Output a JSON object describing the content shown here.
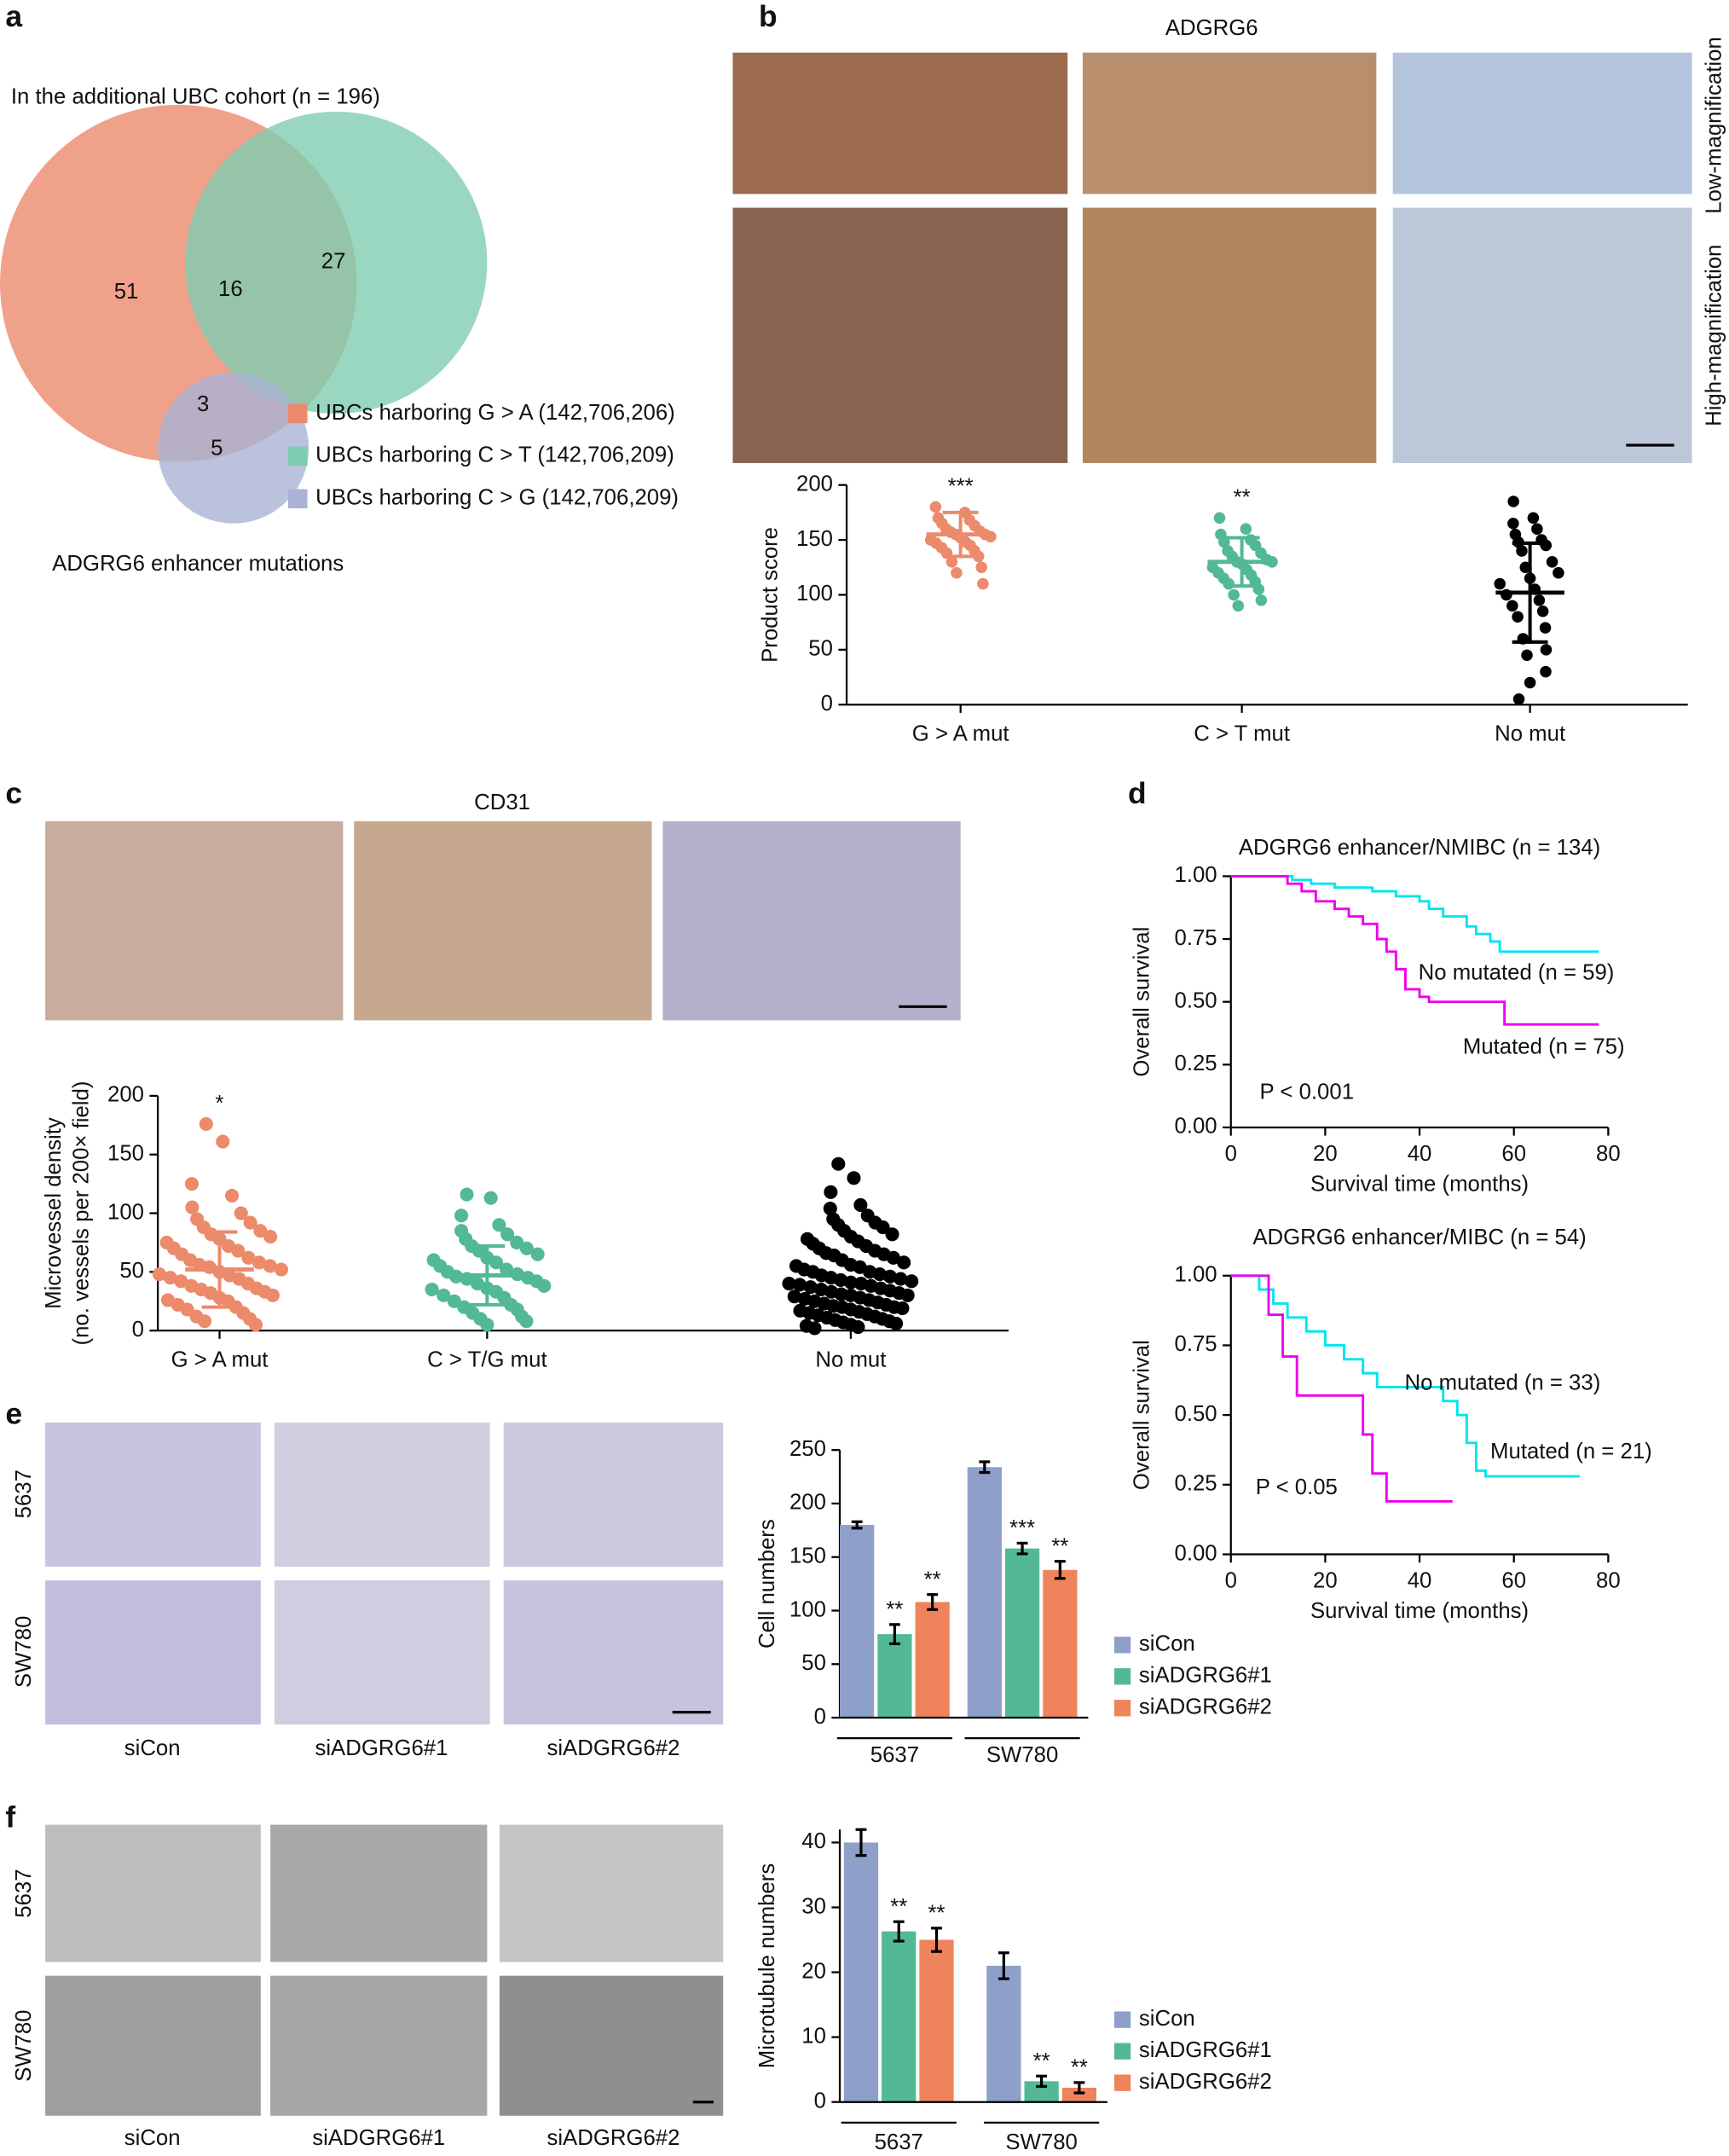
{
  "figure": {
    "panel_labels": [
      "a",
      "b",
      "c",
      "d",
      "e",
      "f"
    ],
    "b_images": {
      "title": "ADGRG6",
      "rows": [
        "Low-magnification",
        "High-magnification"
      ]
    },
    "c_images": {
      "title": "CD31"
    },
    "e_images": {
      "rows": [
        "5637",
        "SW780"
      ],
      "columns": [
        "siCon",
        "siADGRG6#1",
        "siADGRG6#2"
      ]
    },
    "f_images": {
      "rows": [
        "5637",
        "SW780"
      ],
      "columns": [
        "siCon",
        "siADGRG6#1",
        "siADGRG6#2"
      ]
    }
  },
  "chart_data": [
    {
      "type": "venn",
      "title": "In the additional UBC cohort (n = 196)",
      "footnote": "ADGRG6 enhancer mutations",
      "series": [
        {
          "name": "UBCs harboring G > A (142,706,206)",
          "color": "#ec8a6c"
        },
        {
          "name": "UBCs harboring C > T (142,706,209)",
          "color": "#7fcdb0"
        },
        {
          "name": "UBCs harboring C > G (142,706,209)",
          "color": "#a9b3d6"
        }
      ],
      "regions": [
        {
          "sets": [
            0
          ],
          "value": 51
        },
        {
          "sets": [
            0,
            1
          ],
          "value": 16
        },
        {
          "sets": [
            1
          ],
          "value": 27
        },
        {
          "sets": [
            0,
            2
          ],
          "value": 3
        },
        {
          "sets": [
            2
          ],
          "value": 5
        }
      ]
    },
    {
      "type": "strip",
      "ylabel": "Product score",
      "categories": [
        "G > A mut",
        "C > T mut",
        "No mut"
      ],
      "colors": [
        "#ec8a6c",
        "#52b994",
        "#000000"
      ],
      "values": [
        [
          180,
          175,
          170,
          168,
          165,
          163,
          160,
          158,
          157,
          155,
          155,
          153,
          152,
          150,
          148,
          147,
          145,
          143,
          140,
          138,
          135,
          130,
          125,
          120,
          110
        ],
        [
          170,
          160,
          155,
          150,
          148,
          145,
          140,
          138,
          135,
          132,
          130,
          130,
          128,
          125,
          123,
          120,
          118,
          115,
          112,
          110,
          105,
          100,
          95,
          90
        ],
        [
          185,
          170,
          165,
          160,
          155,
          150,
          148,
          145,
          140,
          130,
          125,
          120,
          115,
          110,
          105,
          100,
          95,
          90,
          85,
          80,
          70,
          60,
          50,
          45,
          30,
          20,
          5
        ]
      ],
      "means": [
        155,
        130,
        102
      ],
      "sds": [
        20,
        22,
        45
      ],
      "annotations": [
        "***",
        "**",
        null
      ],
      "ylim": [
        0,
        200
      ],
      "yticks": [
        0,
        50,
        100,
        150,
        200
      ]
    },
    {
      "type": "strip",
      "ylabel": [
        "Microvessel density",
        "(no. vessels per 200× field)"
      ],
      "categories": [
        "G > A mut",
        "C > T/G mut",
        "No mut"
      ],
      "colors": [
        "#ec8a6c",
        "#52b994",
        "#000000"
      ],
      "values": [
        [
          176,
          161,
          125,
          115,
          105,
          100,
          95,
          92,
          88,
          85,
          82,
          80,
          78,
          75,
          72,
          70,
          68,
          65,
          62,
          60,
          58,
          56,
          55,
          54,
          52,
          50,
          48,
          47,
          45,
          44,
          42,
          40,
          38,
          36,
          35,
          33,
          32,
          30,
          28,
          26,
          25,
          22,
          20,
          18,
          15,
          12,
          10,
          8,
          5
        ],
        [
          116,
          113,
          98,
          90,
          85,
          82,
          78,
          75,
          72,
          70,
          68,
          65,
          62,
          60,
          58,
          55,
          52,
          50,
          48,
          46,
          45,
          44,
          42,
          40,
          38,
          36,
          35,
          33,
          30,
          28,
          25,
          22,
          20,
          18,
          15,
          12,
          10,
          8,
          5
        ],
        [
          142,
          130,
          118,
          107,
          104,
          98,
          95,
          92,
          90,
          88,
          85,
          82,
          80,
          78,
          76,
          74,
          72,
          70,
          68,
          66,
          65,
          64,
          62,
          60,
          58,
          56,
          55,
          54,
          52,
          50,
          50,
          48,
          47,
          46,
          45,
          44,
          43,
          42,
          41,
          40,
          40,
          39,
          38,
          37,
          36,
          35,
          34,
          33,
          32,
          31,
          30,
          30,
          29,
          28,
          27,
          26,
          25,
          24,
          23,
          22,
          21,
          20,
          20,
          19,
          18,
          17,
          16,
          15,
          14,
          13,
          12,
          11,
          10,
          9,
          8,
          7,
          6,
          5,
          4,
          3,
          2
        ]
      ],
      "means": [
        52,
        47,
        null
      ],
      "sds": [
        32,
        25,
        null
      ],
      "annotations": [
        "*",
        null,
        null
      ],
      "ylim": [
        0,
        200
      ],
      "yticks": [
        0,
        50,
        100,
        150,
        200
      ]
    },
    {
      "type": "step",
      "title": "ADGRG6 enhancer/NMIBC (n = 134)",
      "xlabel": "Survival time (months)",
      "ylabel": "Overall survival",
      "annotation": "P < 0.001",
      "xlim": [
        0,
        80
      ],
      "xticks": [
        0,
        20,
        40,
        60,
        80
      ],
      "ylim": [
        0,
        1
      ],
      "yticks": [
        {
          "value": 0,
          "label": "0.00"
        },
        0.25,
        {
          "value": 0.5,
          "label": "0.50"
        },
        0.75,
        {
          "value": 1,
          "label": "1.00"
        }
      ],
      "series": [
        {
          "name": "No mutated (n = 59)",
          "color": "#00e5ee",
          "x": [
            0,
            13,
            13,
            17,
            17,
            22,
            22,
            30,
            30,
            35,
            35,
            40,
            40,
            42,
            42,
            45,
            45,
            50,
            50,
            52,
            52,
            55,
            55,
            57,
            57,
            78
          ],
          "values": [
            1,
            1,
            0.985,
            0.985,
            0.97,
            0.97,
            0.955,
            0.955,
            0.94,
            0.94,
            0.92,
            0.92,
            0.9,
            0.9,
            0.87,
            0.87,
            0.84,
            0.84,
            0.8,
            0.8,
            0.77,
            0.77,
            0.74,
            0.74,
            0.7,
            0.7
          ]
        },
        {
          "name": "Mutated (n = 75)",
          "color": "#ee00ee",
          "x": [
            0,
            12,
            12,
            15,
            15,
            18,
            18,
            22,
            22,
            25,
            25,
            28,
            28,
            31,
            31,
            33,
            33,
            35,
            35,
            37,
            37,
            40,
            40,
            42,
            42,
            58,
            58,
            78
          ],
          "values": [
            1,
            1,
            0.97,
            0.97,
            0.94,
            0.94,
            0.9,
            0.9,
            0.87,
            0.87,
            0.84,
            0.84,
            0.81,
            0.81,
            0.75,
            0.75,
            0.7,
            0.7,
            0.63,
            0.63,
            0.55,
            0.55,
            0.52,
            0.52,
            0.5,
            0.5,
            0.41,
            0.41
          ]
        }
      ]
    },
    {
      "type": "step",
      "title": "ADGRG6 enhancer/MIBC (n = 54)",
      "xlabel": "Survival time (months)",
      "ylabel": "Overall survival",
      "annotation": "P < 0.05",
      "xlim": [
        0,
        80
      ],
      "xticks": [
        0,
        20,
        40,
        60,
        80
      ],
      "ylim": [
        0,
        1
      ],
      "yticks": [
        {
          "value": 0,
          "label": "0.00"
        },
        0.25,
        {
          "value": 0.5,
          "label": "0.50"
        },
        0.75,
        {
          "value": 1,
          "label": "1.00"
        }
      ],
      "series": [
        {
          "name": "No mutated (n = 33)",
          "color": "#00e5ee",
          "x": [
            0,
            6,
            6,
            9,
            9,
            12,
            12,
            16,
            16,
            20,
            20,
            24,
            24,
            28,
            28,
            31,
            31,
            45,
            45,
            48,
            48,
            50,
            50,
            52,
            52,
            54,
            54,
            74
          ],
          "values": [
            1,
            1,
            0.95,
            0.95,
            0.9,
            0.9,
            0.85,
            0.85,
            0.8,
            0.8,
            0.75,
            0.75,
            0.7,
            0.7,
            0.65,
            0.65,
            0.6,
            0.6,
            0.55,
            0.55,
            0.5,
            0.5,
            0.4,
            0.4,
            0.3,
            0.3,
            0.28,
            0.28
          ]
        },
        {
          "name": "Mutated (n = 21)",
          "color": "#ee00ee",
          "x": [
            0,
            8,
            8,
            11,
            11,
            14,
            14,
            28,
            28,
            30,
            30,
            33,
            33,
            47
          ],
          "values": [
            1,
            1,
            0.86,
            0.86,
            0.71,
            0.71,
            0.57,
            0.57,
            0.43,
            0.43,
            0.29,
            0.29,
            0.19,
            0.19
          ]
        }
      ]
    },
    {
      "type": "bar",
      "ylabel": "Cell numbers",
      "categories": [
        "5637",
        "SW780"
      ],
      "series": [
        {
          "name": "siCon",
          "color": "#8e9fca",
          "values": [
            180,
            234
          ],
          "errors": [
            3,
            5
          ],
          "annotations": [
            null,
            null
          ]
        },
        {
          "name": "siADGRG6#1",
          "color": "#52b994",
          "values": [
            78,
            158
          ],
          "errors": [
            9,
            5
          ],
          "annotations": [
            "**",
            "***"
          ]
        },
        {
          "name": "siADGRG6#2",
          "color": "#ef845c",
          "values": [
            108,
            138
          ],
          "errors": [
            7,
            8
          ],
          "annotations": [
            "**",
            "**"
          ]
        }
      ],
      "ylim": [
        0,
        250
      ],
      "yticks": [
        0,
        50,
        100,
        150,
        200,
        250
      ]
    },
    {
      "type": "bar",
      "ylabel": "Microtubule numbers",
      "categories": [
        "5637",
        "SW780"
      ],
      "series": [
        {
          "name": "siCon",
          "color": "#8e9fca",
          "values": [
            40,
            21
          ],
          "errors": [
            2,
            2
          ],
          "annotations": [
            null,
            null
          ]
        },
        {
          "name": "siADGRG6#1",
          "color": "#52b994",
          "values": [
            26.3,
            3.2
          ],
          "errors": [
            1.5,
            0.8
          ],
          "annotations": [
            "**",
            "**"
          ]
        },
        {
          "name": "siADGRG6#2",
          "color": "#ef845c",
          "values": [
            25,
            2.2
          ],
          "errors": [
            1.8,
            0.8
          ],
          "annotations": [
            "**",
            "**"
          ]
        }
      ],
      "ylim": [
        0,
        42
      ],
      "yticks": [
        0,
        10,
        20,
        30,
        40
      ]
    }
  ]
}
